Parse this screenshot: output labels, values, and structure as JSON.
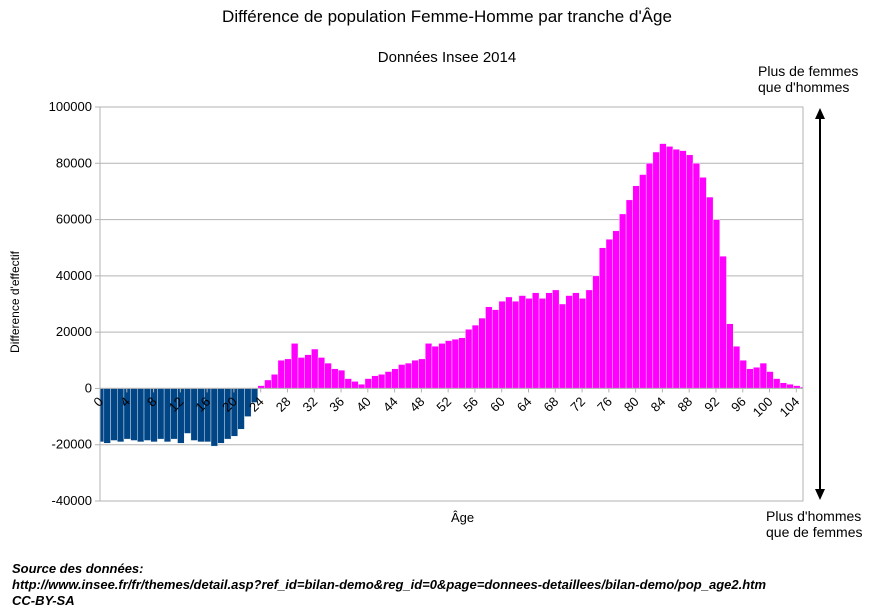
{
  "title": "Différence de population Femme-Homme par tranche d'Âge",
  "subtitle": "Données Insee 2014",
  "annotations": {
    "top": [
      "Plus de femmes",
      "que d'hommes"
    ],
    "bottom": [
      "Plus d'hommes",
      "que de femmes"
    ]
  },
  "source": {
    "label": "Source des données:",
    "url": "http://www.insee.fr/fr/themes/detail.asp?ref_id=bilan-demo&reg_id=0&page=donnees-detaillees/bilan-demo/pop_age2.htm",
    "license": "CC-BY-SA"
  },
  "chart_data": {
    "type": "area",
    "title": "Différence de population Femme-Homme par tranche d'Âge",
    "subtitle": "Données Insee 2014",
    "xlabel": "Âge",
    "ylabel": "Difference d'effectif",
    "ylim": [
      -40000,
      100000
    ],
    "yticks": [
      -40000,
      -20000,
      0,
      20000,
      40000,
      60000,
      80000,
      100000
    ],
    "xticks": [
      0,
      4,
      8,
      12,
      16,
      20,
      24,
      28,
      32,
      36,
      40,
      44,
      48,
      52,
      56,
      60,
      64,
      68,
      72,
      76,
      80,
      84,
      88,
      92,
      96,
      100,
      104
    ],
    "grid": true,
    "legend": "none",
    "colors": {
      "negative": "#004586",
      "positive": "#ff00ff"
    },
    "x": [
      0,
      1,
      2,
      3,
      4,
      5,
      6,
      7,
      8,
      9,
      10,
      11,
      12,
      13,
      14,
      15,
      16,
      17,
      18,
      19,
      20,
      21,
      22,
      23,
      24,
      25,
      26,
      27,
      28,
      29,
      30,
      31,
      32,
      33,
      34,
      35,
      36,
      37,
      38,
      39,
      40,
      41,
      42,
      43,
      44,
      45,
      46,
      47,
      48,
      49,
      50,
      51,
      52,
      53,
      54,
      55,
      56,
      57,
      58,
      59,
      60,
      61,
      62,
      63,
      64,
      65,
      66,
      67,
      68,
      69,
      70,
      71,
      72,
      73,
      74,
      75,
      76,
      77,
      78,
      79,
      80,
      81,
      82,
      83,
      84,
      85,
      86,
      87,
      88,
      89,
      90,
      91,
      92,
      93,
      94,
      95,
      96,
      97,
      98,
      99,
      100,
      101,
      102,
      103,
      104,
      105
    ],
    "values": [
      -19000,
      -19500,
      -18500,
      -19000,
      -18000,
      -18500,
      -19000,
      -18500,
      -19000,
      -18000,
      -19000,
      -18000,
      -19500,
      -16000,
      -18500,
      -19000,
      -19000,
      -20500,
      -19500,
      -18000,
      -17000,
      -14500,
      -10000,
      -5000,
      1000,
      3000,
      5000,
      10000,
      10500,
      16000,
      11000,
      12000,
      14000,
      11000,
      9000,
      7000,
      6500,
      3500,
      2500,
      1500,
      3500,
      4500,
      5000,
      6000,
      7000,
      8500,
      9000,
      10000,
      10500,
      16000,
      15000,
      16000,
      17000,
      17500,
      18000,
      21000,
      22500,
      25000,
      29000,
      28000,
      31000,
      32500,
      31000,
      33000,
      32000,
      34000,
      32000,
      34000,
      35000,
      30000,
      33000,
      34000,
      32000,
      35000,
      40000,
      50000,
      53000,
      56000,
      62000,
      67000,
      72000,
      76000,
      80000,
      84000,
      87000,
      86000,
      85000,
      84500,
      83000,
      80000,
      75000,
      68000,
      60000,
      47000,
      23000,
      15000,
      10000,
      7000,
      7500,
      9000,
      6000,
      3500,
      2000,
      1500,
      1000,
      500
    ]
  }
}
